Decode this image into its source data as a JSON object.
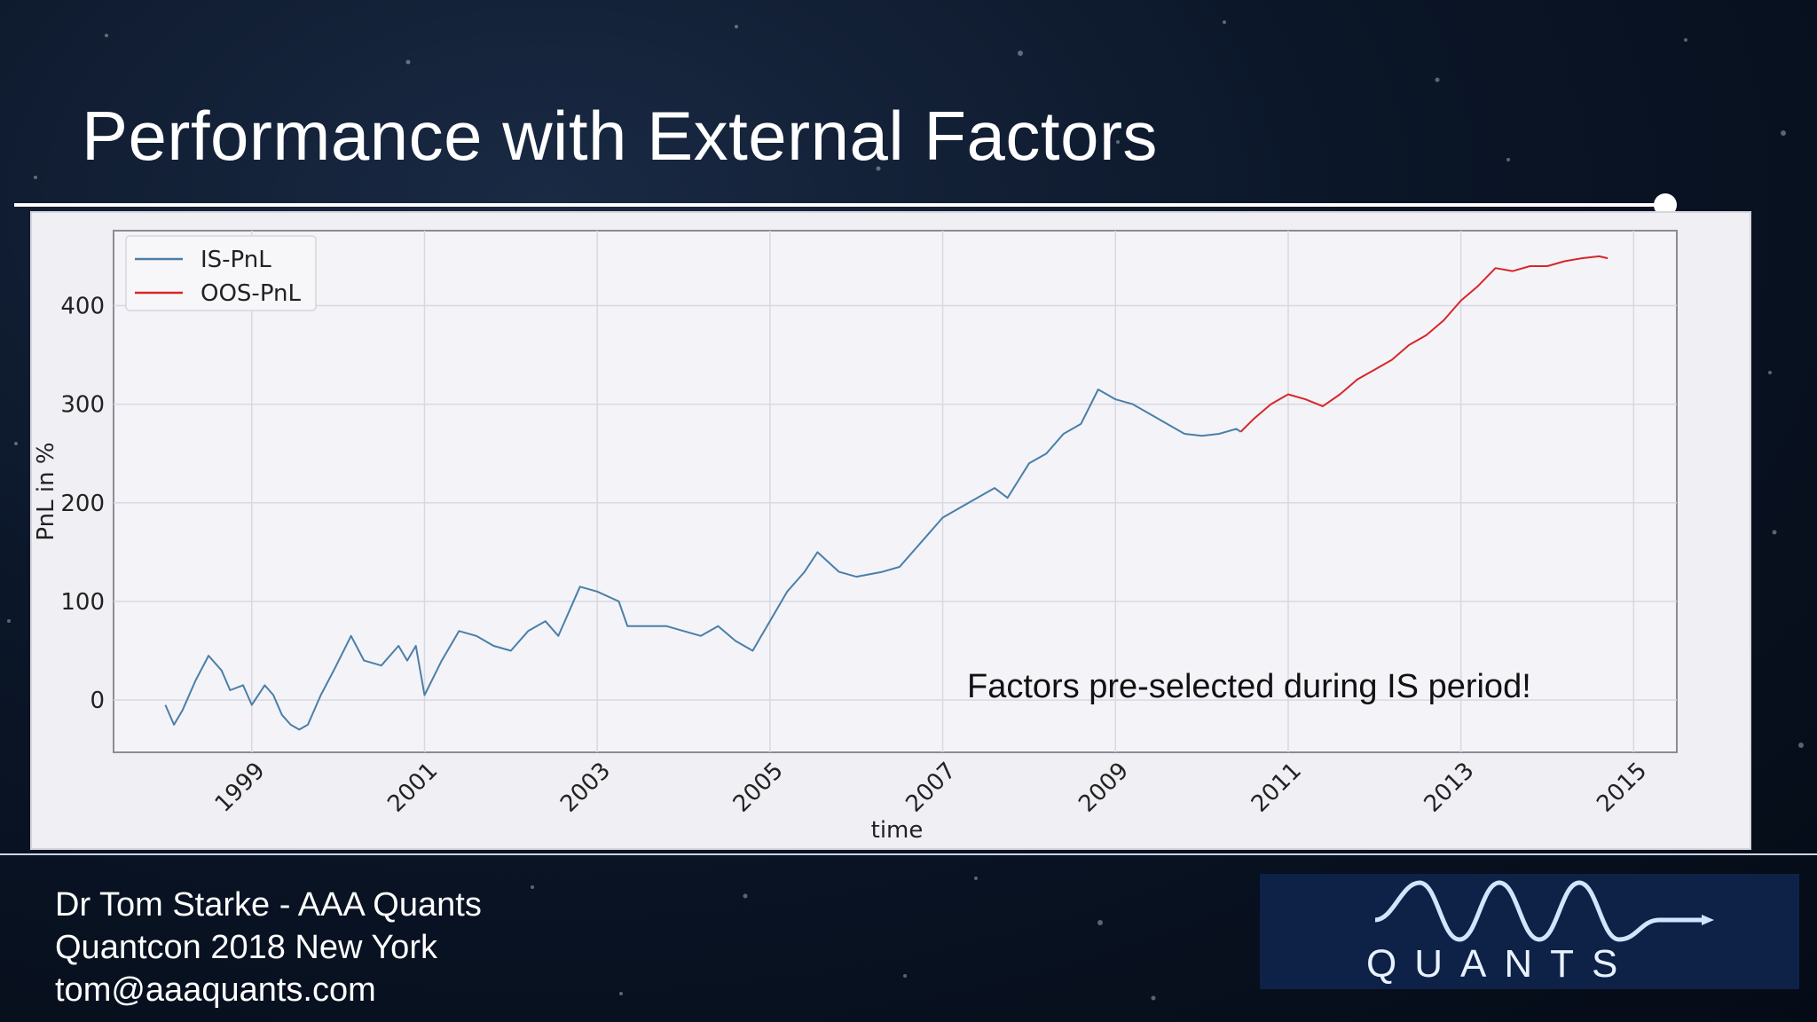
{
  "slide": {
    "title": "Performance with External Factors"
  },
  "footer": {
    "line1": "Dr Tom Starke - AAA Quants",
    "line2": "Quantcon 2018 New York",
    "line3": "tom@aaaquants.com"
  },
  "logo": {
    "wordmark": "QUANTS",
    "icon": "triple-a-wave-logo"
  },
  "colors": {
    "is_series": "#4a7fa8",
    "oos_series": "#d62728",
    "grid": "#d8d8e0",
    "axis_text": "#222222",
    "title": "#ffffff"
  },
  "chart_data": {
    "type": "line",
    "title": "",
    "xlabel": "time",
    "ylabel": "PnL in %",
    "xlim": [
      1997.4,
      2015.5
    ],
    "ylim": [
      -53,
      476
    ],
    "x_ticks": [
      1999,
      2001,
      2003,
      2005,
      2007,
      2009,
      2011,
      2013,
      2015
    ],
    "x_tick_labels": [
      "1999",
      "2001",
      "2003",
      "2005",
      "2007",
      "2009",
      "2011",
      "2013",
      "2015"
    ],
    "y_ticks": [
      0,
      100,
      200,
      300,
      400
    ],
    "y_tick_labels": [
      "0",
      "100",
      "200",
      "300",
      "400"
    ],
    "grid": true,
    "legend_position": "top-left",
    "annotation": "Factors pre-selected during IS period!",
    "series": [
      {
        "name": "IS-PnL",
        "x": [
          1998.0,
          1998.1,
          1998.2,
          1998.35,
          1998.5,
          1998.65,
          1998.75,
          1998.9,
          1999.0,
          1999.15,
          1999.25,
          1999.35,
          1999.45,
          1999.55,
          1999.65,
          1999.8,
          1999.95,
          2000.15,
          2000.3,
          2000.5,
          2000.7,
          2000.8,
          2000.9,
          2001.0,
          2001.2,
          2001.4,
          2001.6,
          2001.8,
          2002.0,
          2002.2,
          2002.4,
          2002.55,
          2002.8,
          2003.0,
          2003.25,
          2003.35,
          2003.6,
          2003.8,
          2004.0,
          2004.2,
          2004.4,
          2004.6,
          2004.8,
          2004.9,
          2005.0,
          2005.2,
          2005.4,
          2005.55,
          2005.8,
          2006.0,
          2006.3,
          2006.5,
          2006.8,
          2007.0,
          2007.3,
          2007.6,
          2007.75,
          2008.0,
          2008.2,
          2008.4,
          2008.6,
          2008.8,
          2008.9,
          2009.0,
          2009.2,
          2009.4,
          2009.6,
          2009.8,
          2010.0,
          2010.2,
          2010.4,
          2010.45
        ],
        "y": [
          -5,
          -25,
          -10,
          20,
          45,
          30,
          10,
          15,
          -5,
          15,
          5,
          -15,
          -25,
          -30,
          -25,
          5,
          30,
          65,
          40,
          35,
          55,
          40,
          55,
          5,
          40,
          70,
          65,
          55,
          50,
          70,
          80,
          65,
          115,
          110,
          100,
          75,
          75,
          75,
          70,
          65,
          75,
          60,
          50,
          65,
          80,
          110,
          130,
          150,
          130,
          125,
          130,
          135,
          165,
          185,
          200,
          215,
          205,
          240,
          250,
          270,
          280,
          315,
          310,
          305,
          300,
          290,
          280,
          270,
          268,
          270,
          275,
          272
        ]
      },
      {
        "name": "OOS-PnL",
        "x": [
          2010.45,
          2010.6,
          2010.8,
          2011.0,
          2011.2,
          2011.4,
          2011.6,
          2011.8,
          2012.0,
          2012.2,
          2012.4,
          2012.6,
          2012.8,
          2013.0,
          2013.2,
          2013.4,
          2013.6,
          2013.8,
          2014.0,
          2014.2,
          2014.4,
          2014.6,
          2014.7
        ],
        "y": [
          272,
          285,
          300,
          310,
          305,
          298,
          310,
          325,
          335,
          345,
          360,
          370,
          385,
          405,
          420,
          438,
          435,
          440,
          440,
          445,
          448,
          450,
          448
        ]
      }
    ]
  }
}
